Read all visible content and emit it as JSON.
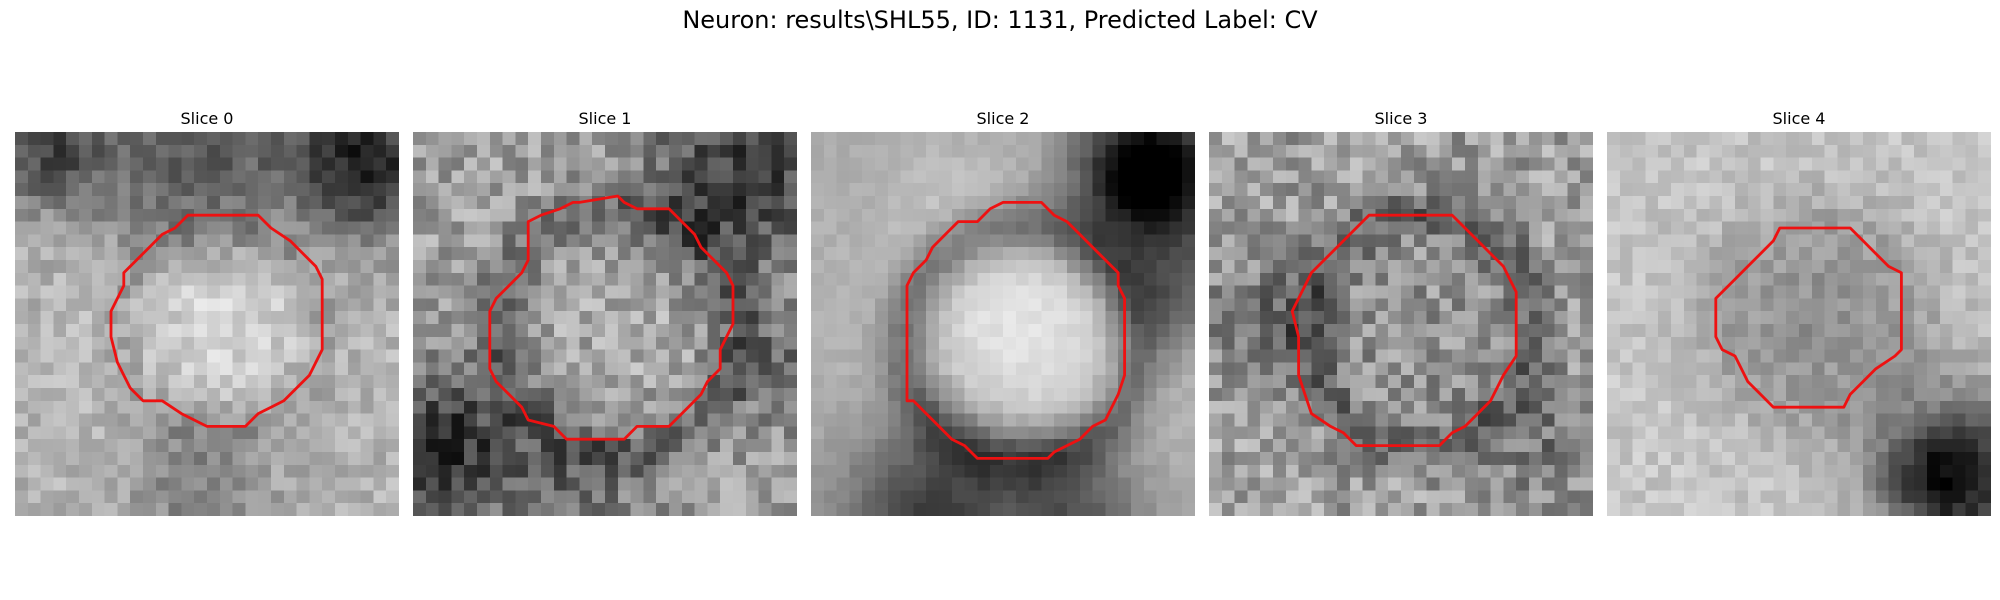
{
  "figure": {
    "title": "Neuron: results\\SHL55, ID: 1131, Predicted Label: CV",
    "contour_color": "#ee1111"
  },
  "slices": [
    {
      "title": "Slice 0"
    },
    {
      "title": "Slice 1"
    },
    {
      "title": "Slice 2"
    },
    {
      "title": "Slice 3"
    },
    {
      "title": "Slice 4"
    }
  ]
}
